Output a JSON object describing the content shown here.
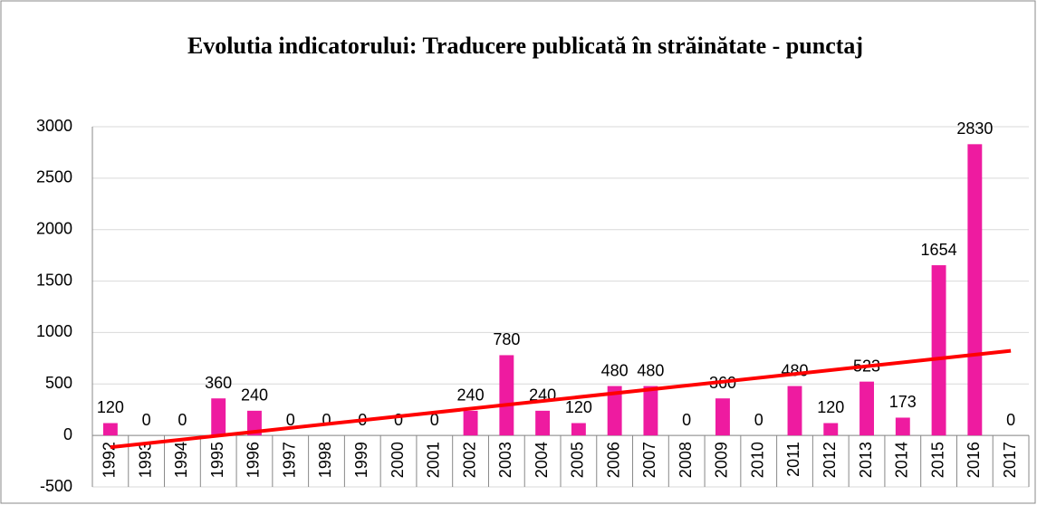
{
  "chart_data": {
    "type": "bar",
    "title": "Evolutia indicatorului: Traducere publicată în străinătate - punctaj",
    "categories": [
      "1992",
      "1993",
      "1994",
      "1995",
      "1996",
      "1997",
      "1998",
      "1999",
      "2000",
      "2001",
      "2002",
      "2003",
      "2004",
      "2005",
      "2006",
      "2007",
      "2008",
      "2009",
      "2010",
      "2011",
      "2012",
      "2013",
      "2014",
      "2015",
      "2016",
      "2017"
    ],
    "values": [
      120,
      0,
      0,
      360,
      240,
      0,
      0,
      0,
      0,
      0,
      240,
      780,
      240,
      120,
      480,
      480,
      0,
      360,
      0,
      480,
      120,
      523,
      173,
      1654,
      2830,
      0
    ],
    "color": "#ee1ba0",
    "trendline": "linear",
    "trendline_color": "#ff0000",
    "ylim": [
      -500,
      3000
    ],
    "yticks": [
      -500,
      0,
      500,
      1000,
      1500,
      2000,
      2500,
      3000
    ],
    "grid": true
  }
}
